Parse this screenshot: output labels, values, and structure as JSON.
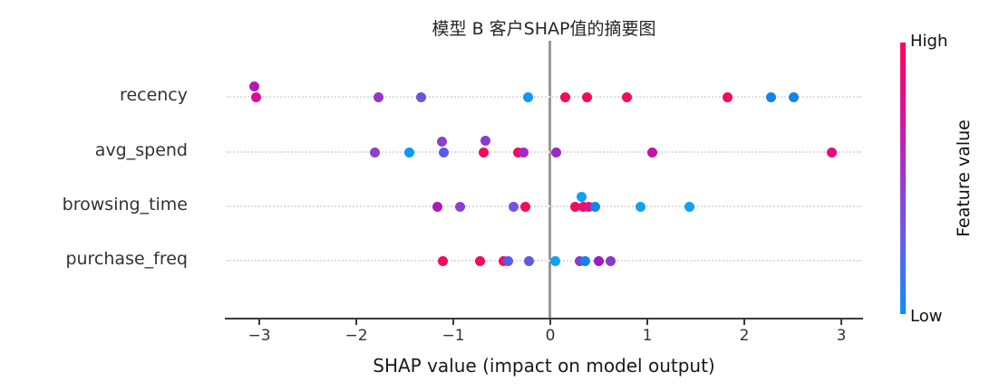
{
  "chart_data": {
    "type": "scatter",
    "subtype": "shap-summary-beeswarm",
    "title": "模型 B 客户SHAP值的摘要图",
    "title_note": "CJK glyphs render as tofu boxes in source image",
    "xlabel": "SHAP value (impact on model output)",
    "xlim": [
      -3.35,
      3.25
    ],
    "grid": "horizontal-dotted",
    "axis": {
      "ticks": [
        {
          "v": -3,
          "label": "−3"
        },
        {
          "v": -2,
          "label": "−2"
        },
        {
          "v": -1,
          "label": "−1"
        },
        {
          "v": 0,
          "label": "0"
        },
        {
          "v": 1,
          "label": "1"
        },
        {
          "v": 2,
          "label": "2"
        },
        {
          "v": 3,
          "label": "3"
        }
      ]
    },
    "features": [
      {
        "name": "recency",
        "points": [
          {
            "x": -3.05,
            "dy": -12,
            "color": "#b31bb3"
          },
          {
            "x": -3.03,
            "dy": 0,
            "color": "#d60e96"
          },
          {
            "x": -1.77,
            "dy": 0,
            "color": "#9437c4"
          },
          {
            "x": -1.33,
            "dy": 0,
            "color": "#6459d8"
          },
          {
            "x": -0.23,
            "dy": 0,
            "color": "#0d9af0"
          },
          {
            "x": 0.15,
            "dy": 0,
            "color": "#f20a5e"
          },
          {
            "x": 0.38,
            "dy": 0,
            "color": "#f20a5e"
          },
          {
            "x": 0.79,
            "dy": 0,
            "color": "#f20a5e"
          },
          {
            "x": 1.83,
            "dy": 0,
            "color": "#f20a5e"
          },
          {
            "x": 2.28,
            "dy": 0,
            "color": "#1583e8"
          },
          {
            "x": 2.51,
            "dy": 0,
            "color": "#1583e8"
          }
        ]
      },
      {
        "name": "avg_spend",
        "points": [
          {
            "x": -1.81,
            "dy": 0,
            "color": "#8a42cc"
          },
          {
            "x": -1.45,
            "dy": 0,
            "color": "#0d9af0"
          },
          {
            "x": -1.12,
            "dy": -12,
            "color": "#8a42cc"
          },
          {
            "x": -1.1,
            "dy": 0,
            "color": "#5a5ae8"
          },
          {
            "x": -0.69,
            "dy": 0,
            "color": "#f20a5e"
          },
          {
            "x": -0.67,
            "dy": -13,
            "color": "#8b3bd4"
          },
          {
            "x": -0.33,
            "dy": 0,
            "color": "#f20a5e"
          },
          {
            "x": -0.28,
            "dy": 0,
            "color": "#a428c8"
          },
          {
            "x": 0.06,
            "dy": 0,
            "color": "#9c2bc4"
          },
          {
            "x": 1.05,
            "dy": 0,
            "color": "#c312a8"
          },
          {
            "x": 2.9,
            "dy": 0,
            "color": "#e90b77"
          }
        ]
      },
      {
        "name": "browsing_time",
        "points": [
          {
            "x": -1.16,
            "dy": 0,
            "color": "#a81cb4"
          },
          {
            "x": -0.93,
            "dy": 0,
            "color": "#8b41d0"
          },
          {
            "x": -0.38,
            "dy": 0,
            "color": "#7457dc"
          },
          {
            "x": -0.26,
            "dy": 0,
            "color": "#f5095a"
          },
          {
            "x": 0.26,
            "dy": 0,
            "color": "#f20a5e"
          },
          {
            "x": 0.32,
            "dy": -11,
            "color": "#12a0f5"
          },
          {
            "x": 0.34,
            "dy": 0,
            "color": "#ed0f68"
          },
          {
            "x": 0.4,
            "dy": 0,
            "color": "#e31187"
          },
          {
            "x": 0.46,
            "dy": 0,
            "color": "#1583e8"
          },
          {
            "x": 0.93,
            "dy": 0,
            "color": "#12a0f5"
          },
          {
            "x": 1.43,
            "dy": 0,
            "color": "#12a0f5"
          }
        ]
      },
      {
        "name": "purchase_freq",
        "points": [
          {
            "x": -1.11,
            "dy": 0,
            "color": "#f20a5e"
          },
          {
            "x": -0.72,
            "dy": 0,
            "color": "#f20a5e"
          },
          {
            "x": -0.48,
            "dy": 0,
            "color": "#ed0f68"
          },
          {
            "x": -0.43,
            "dy": 0,
            "color": "#5a5ae8"
          },
          {
            "x": -0.22,
            "dy": 0,
            "color": "#5e5ae0"
          },
          {
            "x": 0.05,
            "dy": 0,
            "color": "#12a0f5"
          },
          {
            "x": 0.3,
            "dy": 0,
            "color": "#8a3aca"
          },
          {
            "x": 0.36,
            "dy": 0,
            "color": "#1583e8"
          },
          {
            "x": 0.5,
            "dy": 0,
            "color": "#a21bbe"
          },
          {
            "x": 0.62,
            "dy": 0,
            "color": "#8a3aca"
          }
        ]
      }
    ],
    "colorbar": {
      "high_label": "High",
      "low_label": "Low",
      "axis_label": "Feature value",
      "gradient_top_to_bottom": [
        "#ff0454",
        "#d9119e",
        "#a136cd",
        "#5f62e8",
        "#0d8ef5"
      ]
    }
  }
}
